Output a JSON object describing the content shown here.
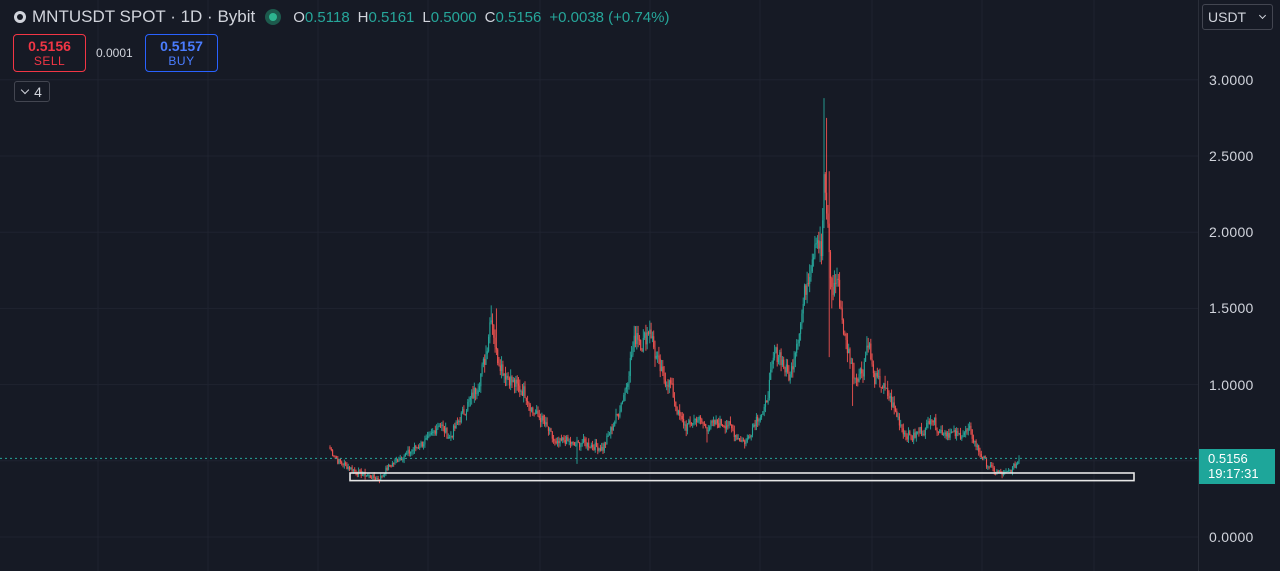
{
  "header": {
    "symbol_title": "MNTUSDT SPOT · 1D · Bybit",
    "symbol_icon": "coin-icon",
    "live_status_icon": "live-dot-icon",
    "ohlc": {
      "o_label": "O",
      "o_value": "0.5118",
      "h_label": "H",
      "h_value": "0.5161",
      "l_label": "L",
      "l_value": "0.5000",
      "c_label": "C",
      "c_value": "0.5156",
      "change": "+0.0038 (+0.74%)"
    }
  },
  "trade": {
    "sell_price": "0.5156",
    "sell_label": "SELL",
    "spread": "0.0001",
    "buy_price": "0.5157",
    "buy_label": "BUY"
  },
  "indicators_toggle": {
    "count": "4"
  },
  "currency_select": {
    "value": "USDT"
  },
  "price_axis": {
    "labels": [
      "3.0000",
      "2.5000",
      "2.0000",
      "1.5000",
      "1.0000",
      "0.0000"
    ],
    "values": [
      3.0,
      2.5,
      2.0,
      1.5,
      1.0,
      0.0
    ]
  },
  "last_price": {
    "value": "0.5156",
    "countdown": "19:17:31"
  },
  "colors": {
    "background": "#161a25",
    "up": "#26a69a",
    "down": "#ef5350",
    "sell": "#f23645",
    "buy": "#2962ff",
    "price_tag": "#1ea69a"
  },
  "chart_data": {
    "type": "candlestick",
    "timeframe": "1D",
    "yrange": [
      -0.1,
      3.0
    ],
    "support_zone": {
      "low": 0.37,
      "high": 0.42
    },
    "current_price": 0.5156,
    "keypoints": [
      {
        "i": 0,
        "p": 0.58
      },
      {
        "i": 6,
        "p": 0.5
      },
      {
        "i": 14,
        "p": 0.46
      },
      {
        "i": 22,
        "p": 0.42
      },
      {
        "i": 30,
        "p": 0.4
      },
      {
        "i": 38,
        "p": 0.38
      },
      {
        "i": 44,
        "p": 0.45
      },
      {
        "i": 52,
        "p": 0.51
      },
      {
        "i": 60,
        "p": 0.55
      },
      {
        "i": 68,
        "p": 0.6
      },
      {
        "i": 76,
        "p": 0.64
      },
      {
        "i": 84,
        "p": 0.75
      },
      {
        "i": 92,
        "p": 0.65
      },
      {
        "i": 100,
        "p": 0.78
      },
      {
        "i": 108,
        "p": 0.9
      },
      {
        "i": 114,
        "p": 1.0
      },
      {
        "i": 120,
        "p": 1.2
      },
      {
        "i": 124,
        "p": 1.48
      },
      {
        "i": 128,
        "p": 1.2
      },
      {
        "i": 134,
        "p": 1.08
      },
      {
        "i": 142,
        "p": 1.0
      },
      {
        "i": 150,
        "p": 0.95
      },
      {
        "i": 156,
        "p": 0.82
      },
      {
        "i": 162,
        "p": 0.78
      },
      {
        "i": 168,
        "p": 0.7
      },
      {
        "i": 174,
        "p": 0.6
      },
      {
        "i": 180,
        "p": 0.64
      },
      {
        "i": 188,
        "p": 0.6
      },
      {
        "i": 194,
        "p": 0.62
      },
      {
        "i": 202,
        "p": 0.6
      },
      {
        "i": 210,
        "p": 0.58
      },
      {
        "i": 216,
        "p": 0.7
      },
      {
        "i": 222,
        "p": 0.82
      },
      {
        "i": 228,
        "p": 1.0
      },
      {
        "i": 232,
        "p": 1.2
      },
      {
        "i": 236,
        "p": 1.35
      },
      {
        "i": 240,
        "p": 1.26
      },
      {
        "i": 246,
        "p": 1.38
      },
      {
        "i": 250,
        "p": 1.2
      },
      {
        "i": 256,
        "p": 1.05
      },
      {
        "i": 262,
        "p": 1.0
      },
      {
        "i": 268,
        "p": 0.8
      },
      {
        "i": 274,
        "p": 0.72
      },
      {
        "i": 282,
        "p": 0.78
      },
      {
        "i": 290,
        "p": 0.72
      },
      {
        "i": 298,
        "p": 0.75
      },
      {
        "i": 306,
        "p": 0.74
      },
      {
        "i": 314,
        "p": 0.65
      },
      {
        "i": 320,
        "p": 0.62
      },
      {
        "i": 328,
        "p": 0.78
      },
      {
        "i": 334,
        "p": 0.82
      },
      {
        "i": 338,
        "p": 1.0
      },
      {
        "i": 342,
        "p": 1.2
      },
      {
        "i": 346,
        "p": 1.2
      },
      {
        "i": 350,
        "p": 1.1
      },
      {
        "i": 354,
        "p": 1.05
      },
      {
        "i": 358,
        "p": 1.25
      },
      {
        "i": 362,
        "p": 1.4
      },
      {
        "i": 366,
        "p": 1.65
      },
      {
        "i": 370,
        "p": 1.8
      },
      {
        "i": 374,
        "p": 2.0
      },
      {
        "i": 378,
        "p": 1.85
      },
      {
        "i": 380,
        "p": 2.3
      },
      {
        "i": 382,
        "p": 2.15
      },
      {
        "i": 386,
        "p": 1.6
      },
      {
        "i": 390,
        "p": 1.7
      },
      {
        "i": 396,
        "p": 1.3
      },
      {
        "i": 400,
        "p": 1.18
      },
      {
        "i": 404,
        "p": 1.05
      },
      {
        "i": 410,
        "p": 1.1
      },
      {
        "i": 414,
        "p": 1.3
      },
      {
        "i": 418,
        "p": 1.05
      },
      {
        "i": 424,
        "p": 1.0
      },
      {
        "i": 430,
        "p": 0.92
      },
      {
        "i": 436,
        "p": 0.8
      },
      {
        "i": 442,
        "p": 0.68
      },
      {
        "i": 448,
        "p": 0.65
      },
      {
        "i": 454,
        "p": 0.7
      },
      {
        "i": 458,
        "p": 0.7
      },
      {
        "i": 462,
        "p": 0.8
      },
      {
        "i": 468,
        "p": 0.7
      },
      {
        "i": 476,
        "p": 0.68
      },
      {
        "i": 484,
        "p": 0.67
      },
      {
        "i": 492,
        "p": 0.7
      },
      {
        "i": 496,
        "p": 0.62
      },
      {
        "i": 500,
        "p": 0.55
      },
      {
        "i": 506,
        "p": 0.47
      },
      {
        "i": 512,
        "p": 0.43
      },
      {
        "i": 518,
        "p": 0.41
      },
      {
        "i": 524,
        "p": 0.44
      },
      {
        "i": 528,
        "p": 0.48
      },
      {
        "i": 530,
        "p": 0.5156
      }
    ],
    "spikes": [
      {
        "i": 124,
        "p": 1.52
      },
      {
        "i": 128,
        "p": 1.5
      },
      {
        "i": 246,
        "p": 1.42
      },
      {
        "i": 380,
        "p": 2.88
      },
      {
        "i": 382,
        "p": 2.75
      },
      {
        "i": 384,
        "p": 2.4
      },
      {
        "i": 386,
        "p": 1.5
      },
      {
        "i": 384,
        "p": 1.18
      },
      {
        "i": 402,
        "p": 0.86
      },
      {
        "i": 190,
        "p": 0.48
      },
      {
        "i": 290,
        "p": 0.62
      }
    ]
  }
}
